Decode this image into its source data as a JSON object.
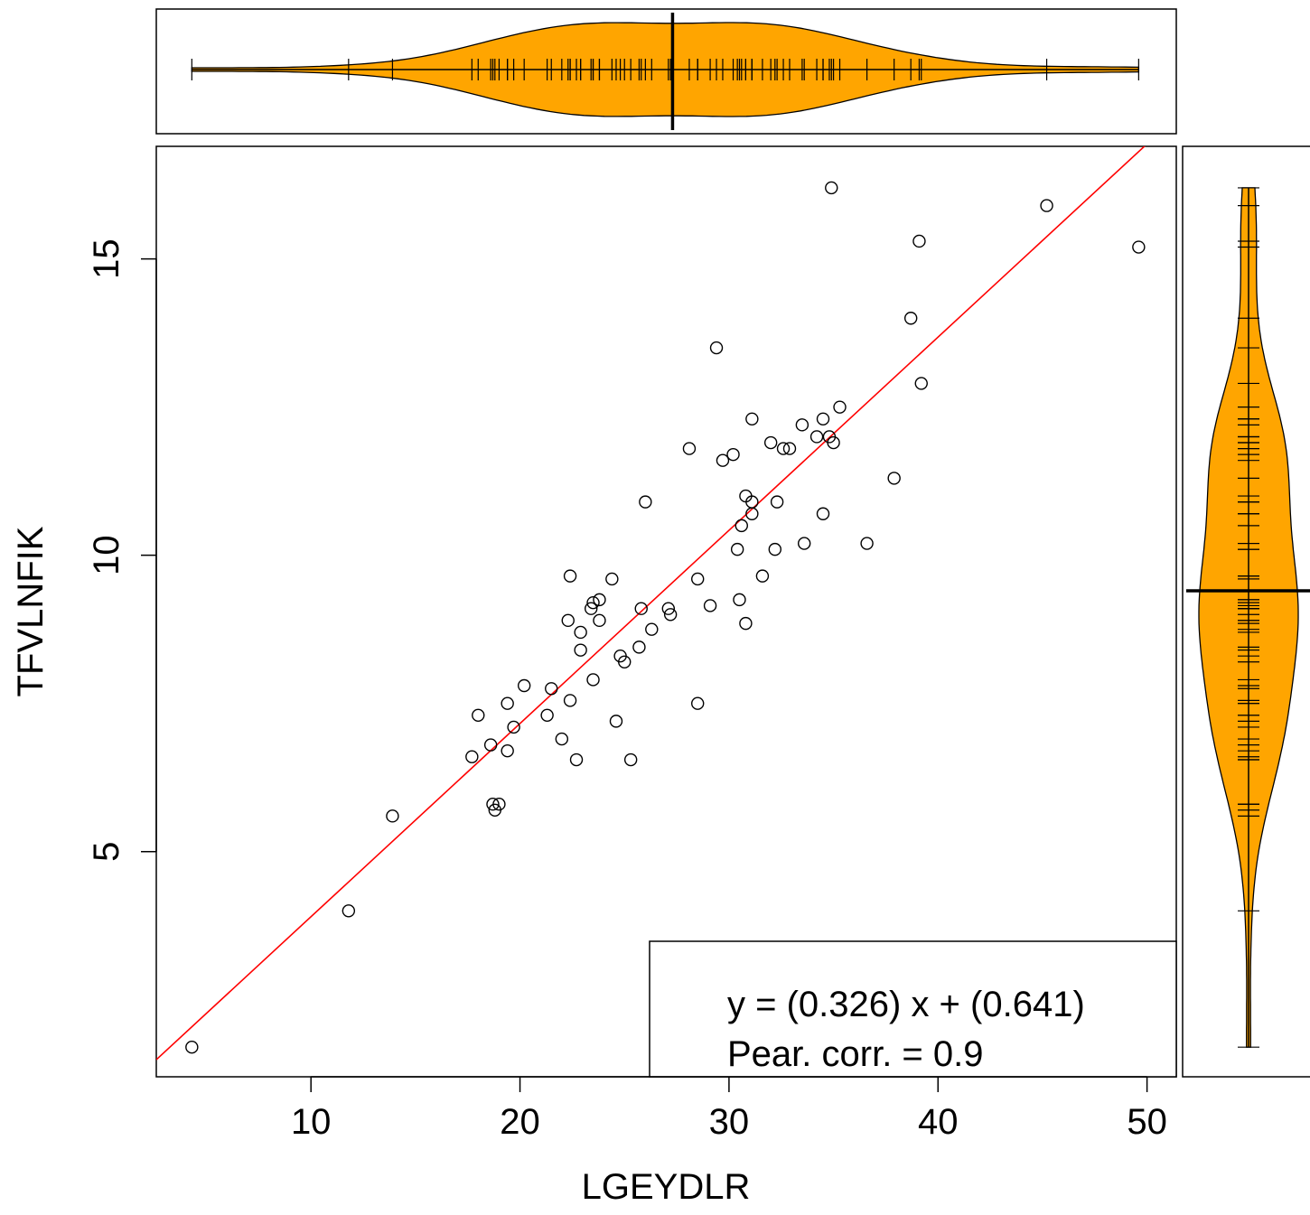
{
  "chart_data": {
    "type": "scatter",
    "xlabel": "LGEYDLR",
    "ylabel": "TFVLNFIK",
    "xlim": [
      2.6,
      51.4
    ],
    "ylim": [
      1.2,
      16.9
    ],
    "x_ticks": [
      10,
      20,
      30,
      40,
      50
    ],
    "y_ticks": [
      5,
      10,
      15
    ],
    "x_tick_labels": [
      "10",
      "20",
      "30",
      "40",
      "50"
    ],
    "y_tick_labels": [
      "5",
      "10",
      "15"
    ],
    "fit_line": {
      "slope": 0.326,
      "intercept": 0.641,
      "color": "#ff0000"
    },
    "annotation": {
      "equation": "y = (0.326) x + (0.641)",
      "correlation": "Pear. corr. = 0.9"
    },
    "grid": false,
    "marginals": {
      "top": {
        "type": "violin",
        "variable": "LGEYDLR",
        "median": 27.3,
        "range": [
          4.3,
          49.6
        ],
        "fill": "#FFA500"
      },
      "right": {
        "type": "violin",
        "variable": "TFVLNFIK",
        "median": 9.4,
        "range": [
          1.7,
          16.2
        ],
        "fill": "#FFA500"
      }
    },
    "points": [
      [
        4.3,
        1.7
      ],
      [
        11.8,
        4.0
      ],
      [
        13.9,
        5.6
      ],
      [
        17.7,
        6.6
      ],
      [
        18.0,
        7.3
      ],
      [
        18.6,
        6.8
      ],
      [
        18.7,
        5.8
      ],
      [
        18.8,
        5.7
      ],
      [
        19.0,
        5.8
      ],
      [
        19.4,
        6.7
      ],
      [
        19.4,
        7.5
      ],
      [
        19.7,
        7.1
      ],
      [
        20.2,
        7.8
      ],
      [
        21.3,
        7.3
      ],
      [
        21.5,
        7.75
      ],
      [
        22.0,
        6.9
      ],
      [
        22.3,
        8.9
      ],
      [
        22.4,
        9.65
      ],
      [
        22.4,
        7.55
      ],
      [
        22.7,
        6.55
      ],
      [
        22.9,
        8.4
      ],
      [
        22.9,
        8.7
      ],
      [
        23.4,
        9.1
      ],
      [
        23.5,
        9.2
      ],
      [
        23.5,
        7.9
      ],
      [
        23.8,
        8.9
      ],
      [
        23.8,
        9.25
      ],
      [
        24.4,
        9.6
      ],
      [
        24.6,
        7.2
      ],
      [
        24.8,
        8.3
      ],
      [
        25.0,
        8.2
      ],
      [
        25.3,
        6.55
      ],
      [
        25.7,
        8.45
      ],
      [
        25.8,
        9.1
      ],
      [
        26.0,
        10.9
      ],
      [
        26.3,
        8.75
      ],
      [
        27.1,
        9.1
      ],
      [
        27.2,
        9.0
      ],
      [
        28.1,
        11.8
      ],
      [
        28.5,
        7.5
      ],
      [
        28.5,
        9.6
      ],
      [
        29.1,
        9.15
      ],
      [
        29.4,
        13.5
      ],
      [
        29.7,
        11.6
      ],
      [
        30.2,
        11.7
      ],
      [
        30.4,
        10.1
      ],
      [
        30.5,
        9.25
      ],
      [
        30.6,
        10.5
      ],
      [
        30.8,
        11.0
      ],
      [
        30.8,
        8.85
      ],
      [
        31.1,
        10.9
      ],
      [
        31.1,
        10.7
      ],
      [
        31.1,
        12.3
      ],
      [
        31.6,
        9.65
      ],
      [
        32.0,
        11.9
      ],
      [
        32.2,
        10.1
      ],
      [
        32.3,
        10.9
      ],
      [
        32.6,
        11.8
      ],
      [
        32.9,
        11.8
      ],
      [
        33.5,
        12.2
      ],
      [
        33.6,
        10.2
      ],
      [
        34.2,
        12.0
      ],
      [
        34.5,
        12.3
      ],
      [
        34.5,
        10.7
      ],
      [
        34.8,
        12.0
      ],
      [
        34.9,
        16.2
      ],
      [
        35.0,
        11.9
      ],
      [
        35.3,
        12.5
      ],
      [
        36.6,
        10.2
      ],
      [
        37.9,
        11.3
      ],
      [
        38.7,
        14.0
      ],
      [
        39.1,
        15.3
      ],
      [
        39.2,
        12.9
      ],
      [
        45.2,
        15.9
      ],
      [
        49.6,
        15.2
      ]
    ]
  }
}
